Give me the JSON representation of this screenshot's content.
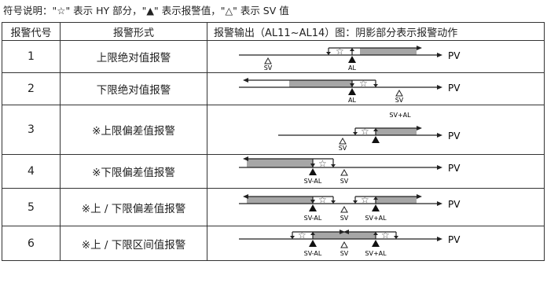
{
  "legend": "符号说明：\"☆\" 表示 HY 部分，\"▲\" 表示报警值，\"△\" 表示 SV 值",
  "headers": [
    "报警代号",
    "报警形式",
    "报警输出（AL11~AL14）图：阴影部分表示报警动作"
  ],
  "rows": [
    {
      "code": "1",
      "form": "上限绝对值报警",
      "pv": "PV",
      "labels": [
        "SV",
        "AL"
      ]
    },
    {
      "code": "2",
      "form": "下限绝对值报警",
      "pv": "PV",
      "labels": [
        "AL",
        "SV"
      ]
    },
    {
      "code": "3",
      "form": "※上限偏差值报警",
      "pv": "PV",
      "labels": [
        "SV+AL",
        "SV"
      ]
    },
    {
      "code": "4",
      "form": "※下限偏差值报警",
      "pv": "PV",
      "labels": [
        "SV-AL",
        "SV"
      ]
    },
    {
      "code": "5",
      "form": "※上 / 下限偏差值报警",
      "pv": "PV",
      "labels": [
        "SV-AL",
        "SV",
        "SV+AL"
      ]
    },
    {
      "code": "6",
      "form": "※上 / 下限区间值报警",
      "pv": "PV",
      "labels": [
        "SV-AL",
        "SV",
        "SV+AL"
      ]
    }
  ],
  "colors": {
    "shade": "#a6a6a6",
    "line": "#222222"
  }
}
